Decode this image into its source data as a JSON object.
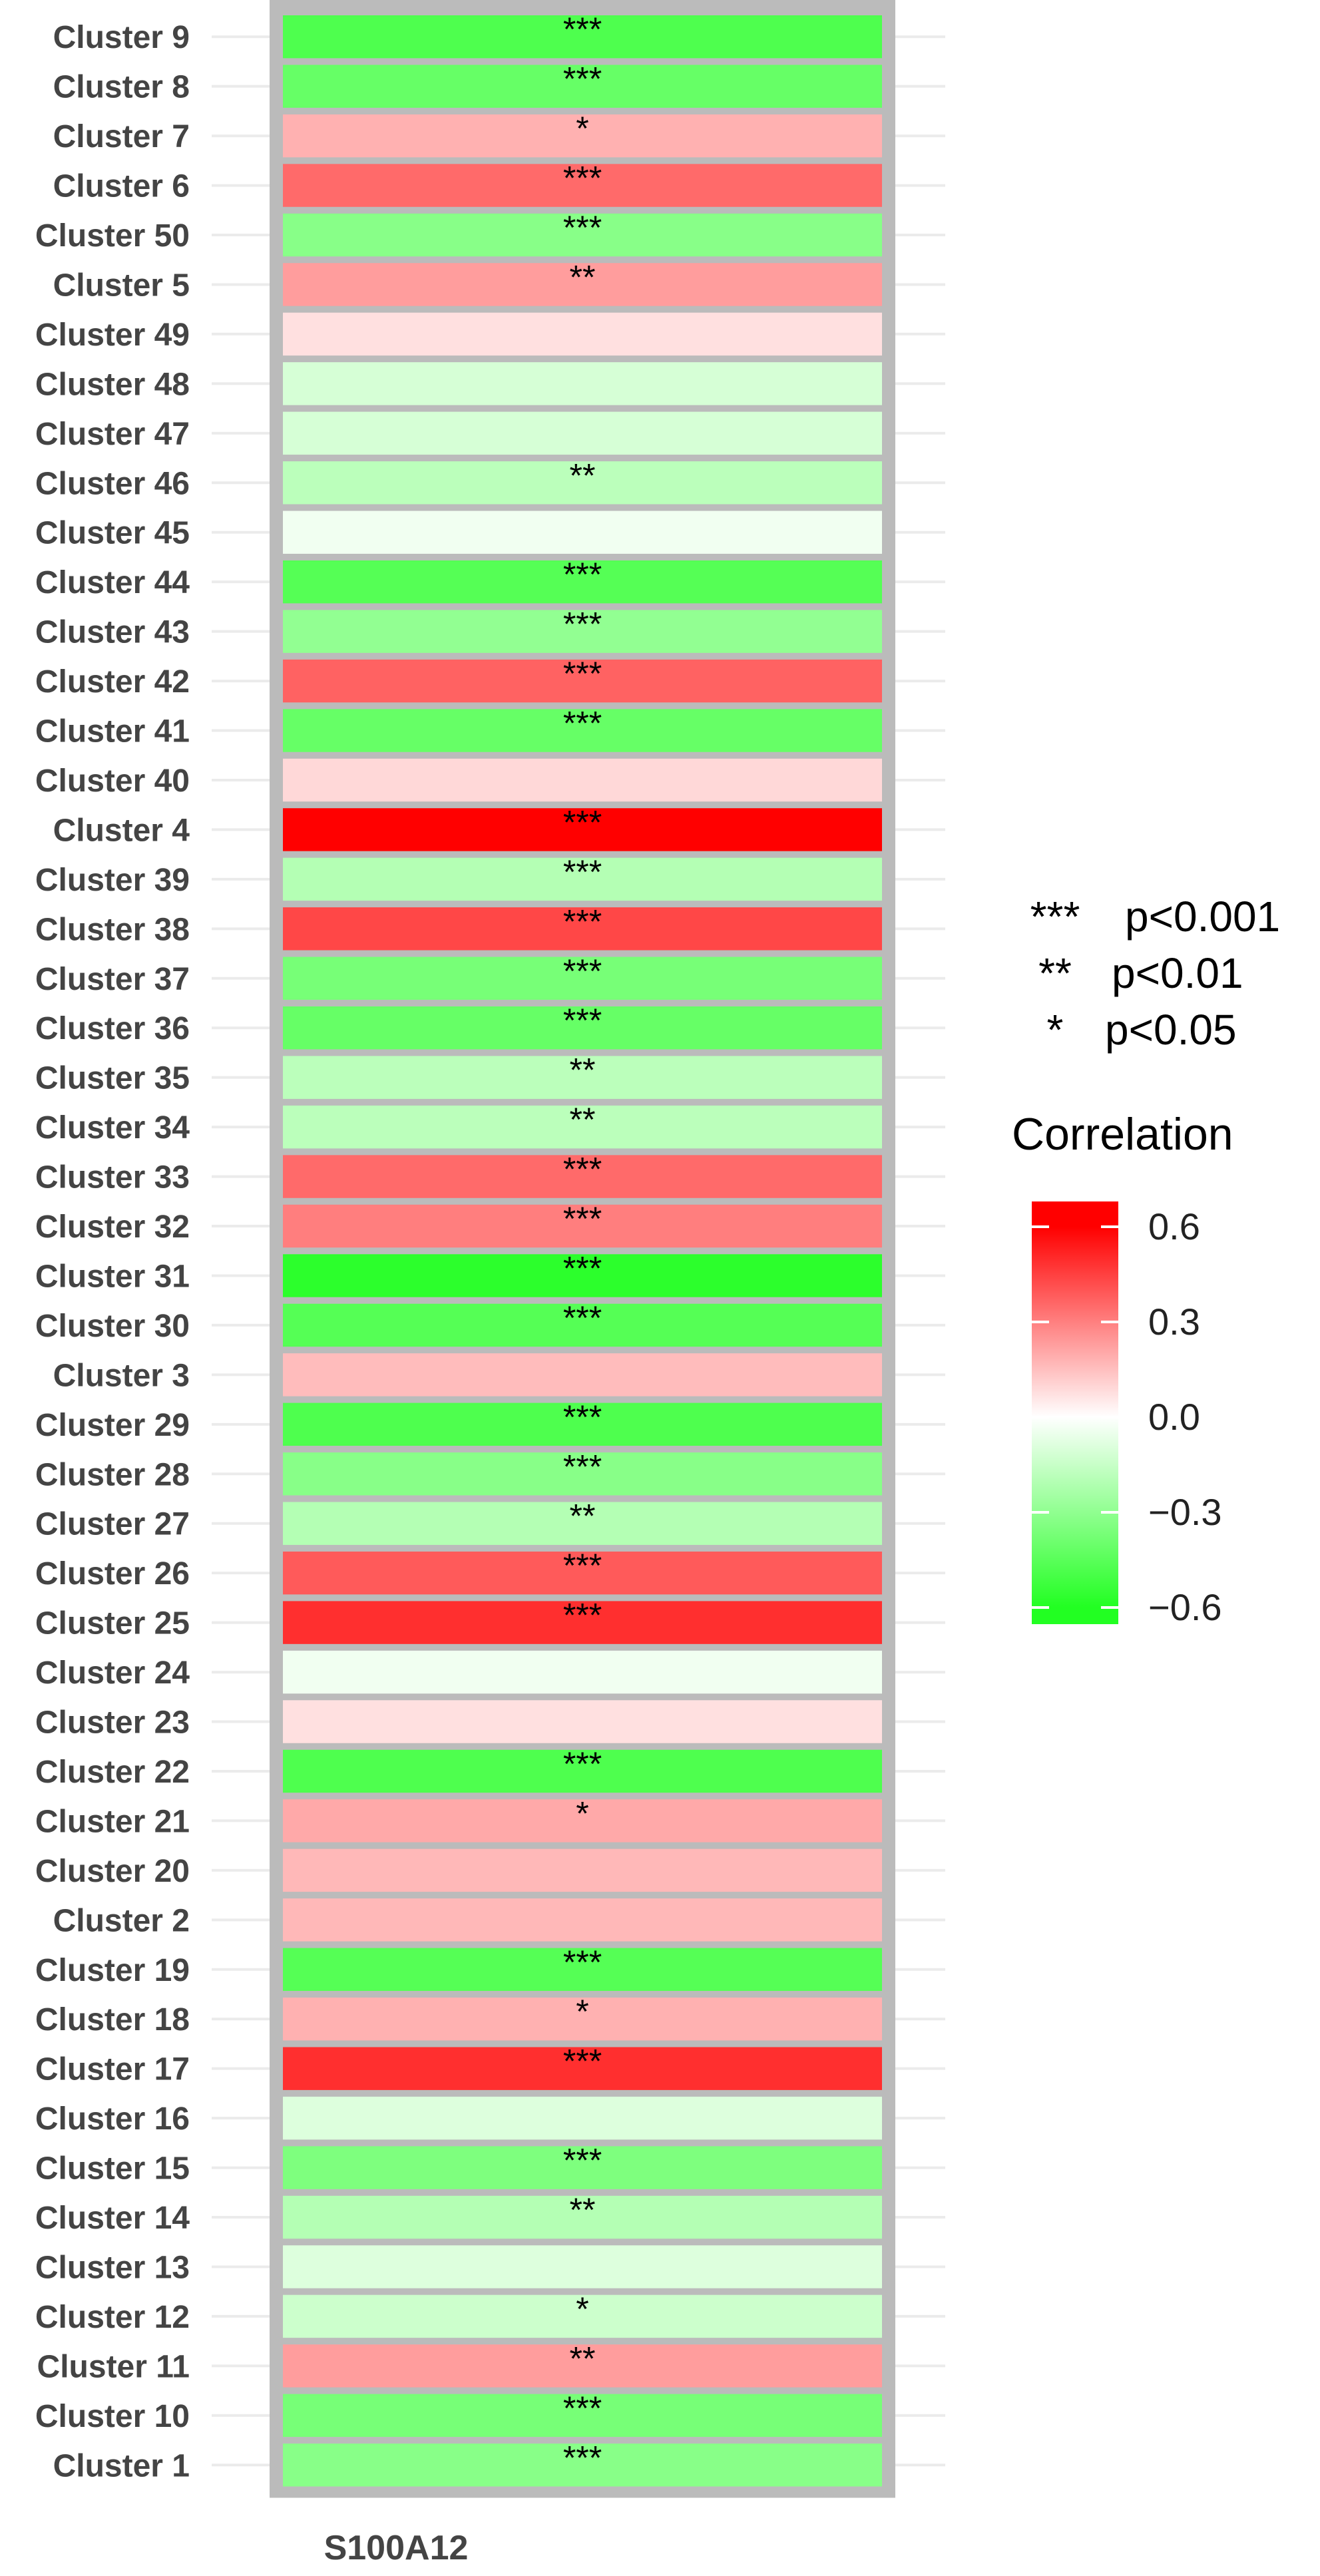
{
  "chart_data": {
    "type": "heatmap",
    "column": "S100A12",
    "rows": [
      {
        "label": "Cluster 9",
        "value": -0.52,
        "sig": "***"
      },
      {
        "label": "Cluster 8",
        "value": -0.45,
        "sig": "***"
      },
      {
        "label": "Cluster 7",
        "value": 0.2,
        "sig": "*"
      },
      {
        "label": "Cluster 6",
        "value": 0.38,
        "sig": "***"
      },
      {
        "label": "Cluster 50",
        "value": -0.35,
        "sig": "***"
      },
      {
        "label": "Cluster 5",
        "value": 0.25,
        "sig": "**"
      },
      {
        "label": "Cluster 49",
        "value": 0.08,
        "sig": ""
      },
      {
        "label": "Cluster 48",
        "value": -0.12,
        "sig": ""
      },
      {
        "label": "Cluster 47",
        "value": -0.12,
        "sig": ""
      },
      {
        "label": "Cluster 46",
        "value": -0.2,
        "sig": "**"
      },
      {
        "label": "Cluster 45",
        "value": -0.04,
        "sig": ""
      },
      {
        "label": "Cluster 44",
        "value": -0.5,
        "sig": "***"
      },
      {
        "label": "Cluster 43",
        "value": -0.32,
        "sig": "***"
      },
      {
        "label": "Cluster 42",
        "value": 0.4,
        "sig": "***"
      },
      {
        "label": "Cluster 41",
        "value": -0.45,
        "sig": "***"
      },
      {
        "label": "Cluster 40",
        "value": 0.1,
        "sig": ""
      },
      {
        "label": "Cluster 4",
        "value": 0.65,
        "sig": "***"
      },
      {
        "label": "Cluster 39",
        "value": -0.22,
        "sig": "***"
      },
      {
        "label": "Cluster 38",
        "value": 0.47,
        "sig": "***"
      },
      {
        "label": "Cluster 37",
        "value": -0.4,
        "sig": "***"
      },
      {
        "label": "Cluster 36",
        "value": -0.45,
        "sig": "***"
      },
      {
        "label": "Cluster 35",
        "value": -0.2,
        "sig": "**"
      },
      {
        "label": "Cluster 34",
        "value": -0.2,
        "sig": "**"
      },
      {
        "label": "Cluster 33",
        "value": 0.38,
        "sig": "***"
      },
      {
        "label": "Cluster 32",
        "value": 0.33,
        "sig": "***"
      },
      {
        "label": "Cluster 31",
        "value": -0.62,
        "sig": "***"
      },
      {
        "label": "Cluster 30",
        "value": -0.5,
        "sig": "***"
      },
      {
        "label": "Cluster 3",
        "value": 0.17,
        "sig": ""
      },
      {
        "label": "Cluster 29",
        "value": -0.52,
        "sig": "***"
      },
      {
        "label": "Cluster 28",
        "value": -0.35,
        "sig": "***"
      },
      {
        "label": "Cluster 27",
        "value": -0.22,
        "sig": "**"
      },
      {
        "label": "Cluster 26",
        "value": 0.42,
        "sig": "***"
      },
      {
        "label": "Cluster 25",
        "value": 0.53,
        "sig": "***"
      },
      {
        "label": "Cluster 24",
        "value": -0.04,
        "sig": ""
      },
      {
        "label": "Cluster 23",
        "value": 0.08,
        "sig": ""
      },
      {
        "label": "Cluster 22",
        "value": -0.52,
        "sig": "***"
      },
      {
        "label": "Cluster 21",
        "value": 0.22,
        "sig": "*"
      },
      {
        "label": "Cluster 20",
        "value": 0.18,
        "sig": ""
      },
      {
        "label": "Cluster 2",
        "value": 0.18,
        "sig": ""
      },
      {
        "label": "Cluster 19",
        "value": -0.5,
        "sig": "***"
      },
      {
        "label": "Cluster 18",
        "value": 0.2,
        "sig": "*"
      },
      {
        "label": "Cluster 17",
        "value": 0.53,
        "sig": "***"
      },
      {
        "label": "Cluster 16",
        "value": -0.1,
        "sig": ""
      },
      {
        "label": "Cluster 15",
        "value": -0.38,
        "sig": "***"
      },
      {
        "label": "Cluster 14",
        "value": -0.22,
        "sig": "**"
      },
      {
        "label": "Cluster 13",
        "value": -0.1,
        "sig": ""
      },
      {
        "label": "Cluster 12",
        "value": -0.15,
        "sig": "*"
      },
      {
        "label": "Cluster 11",
        "value": 0.25,
        "sig": "**"
      },
      {
        "label": "Cluster 10",
        "value": -0.4,
        "sig": "***"
      },
      {
        "label": "Cluster 1",
        "value": -0.35,
        "sig": "***"
      }
    ],
    "value_range": [
      -0.65,
      0.65
    ],
    "colors": {
      "low": "#22ff22",
      "mid": "#ffffff",
      "high": "#ff0000",
      "cell_border": "#bbbbbb",
      "grid": "#ebebeb"
    },
    "legend": {
      "title": "Correlation",
      "ticks": [
        {
          "value": 0.6,
          "label": "0.6"
        },
        {
          "value": 0.3,
          "label": "0.3"
        },
        {
          "value": 0.0,
          "label": "0.0"
        },
        {
          "value": -0.3,
          "label": "−0.3"
        },
        {
          "value": -0.6,
          "label": "−0.6"
        }
      ],
      "significance": [
        {
          "stars": "***",
          "text": "p<0.001"
        },
        {
          "stars": "**",
          "text": "p<0.01"
        },
        {
          "stars": "*",
          "text": "p<0.05"
        }
      ]
    }
  }
}
